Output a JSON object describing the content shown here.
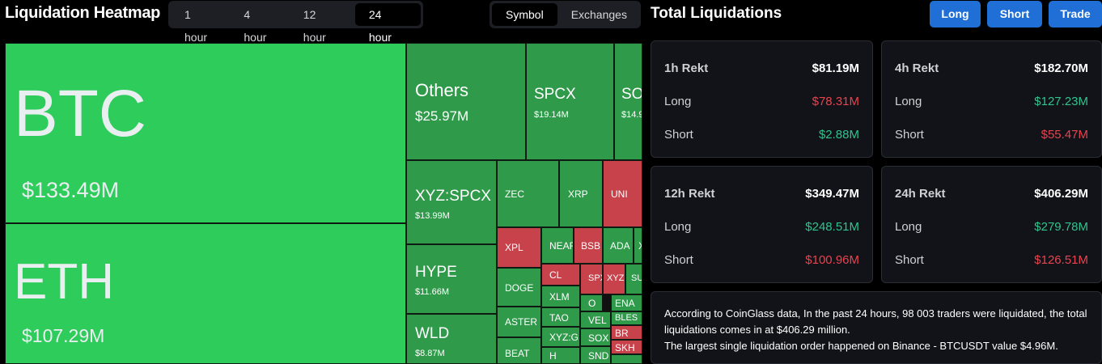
{
  "header": {
    "title": "Liquidation Heatmap",
    "time_options": [
      "1 hour",
      "4 hour",
      "12 hour",
      "24 hour"
    ],
    "time_selected": "24 hour",
    "group_options": [
      "Symbol",
      "Exchanges"
    ],
    "group_selected": "Symbol"
  },
  "colors": {
    "big_green": "#2ecc5a",
    "green": "#2f9a4a",
    "red": "#c7424b",
    "accent_blue": "#1f6fd6"
  },
  "heatmap": {
    "tiles": [
      {
        "name": "BTC",
        "value": "$133.49M",
        "color": "green"
      },
      {
        "name": "ETH",
        "value": "$107.29M",
        "color": "green"
      },
      {
        "name": "Others",
        "value": "$25.97M",
        "color": "green"
      },
      {
        "name": "SPCX",
        "value": "$19.14M",
        "color": "green"
      },
      {
        "name": "SO",
        "value": "$14.9",
        "color": "green"
      },
      {
        "name": "XYZ:SPCX",
        "value": "$13.99M",
        "color": "green"
      },
      {
        "name": "HYPE",
        "value": "$11.66M",
        "color": "green"
      },
      {
        "name": "WLD",
        "value": "$8.87M",
        "color": "green"
      },
      {
        "name": "ZEC",
        "value": "",
        "color": "green"
      },
      {
        "name": "XRP",
        "value": "",
        "color": "green"
      },
      {
        "name": "UNI",
        "value": "",
        "color": "red"
      },
      {
        "name": "XPL",
        "value": "",
        "color": "red"
      },
      {
        "name": "NEAR",
        "value": "",
        "color": "green"
      },
      {
        "name": "BSB",
        "value": "",
        "color": "red"
      },
      {
        "name": "ADA",
        "value": "",
        "color": "green"
      },
      {
        "name": "X",
        "value": "",
        "color": "green"
      },
      {
        "name": "DOGE",
        "value": "",
        "color": "green"
      },
      {
        "name": "CL",
        "value": "",
        "color": "red"
      },
      {
        "name": "SPX",
        "value": "",
        "color": "red"
      },
      {
        "name": "XYZ",
        "value": "",
        "color": "red"
      },
      {
        "name": "SU",
        "value": "",
        "color": "green"
      },
      {
        "name": "XLM",
        "value": "",
        "color": "green"
      },
      {
        "name": "ASTER",
        "value": "",
        "color": "green"
      },
      {
        "name": "O",
        "value": "",
        "color": "green"
      },
      {
        "name": "ENA",
        "value": "",
        "color": "green"
      },
      {
        "name": "TAO",
        "value": "",
        "color": "green"
      },
      {
        "name": "VEL",
        "value": "",
        "color": "green"
      },
      {
        "name": "BLES",
        "value": "",
        "color": "green"
      },
      {
        "name": "XYZ:G",
        "value": "",
        "color": "green"
      },
      {
        "name": "SOX",
        "value": "",
        "color": "green"
      },
      {
        "name": "BR",
        "value": "",
        "color": "red"
      },
      {
        "name": "BEAT",
        "value": "",
        "color": "green"
      },
      {
        "name": "H",
        "value": "",
        "color": "green"
      },
      {
        "name": "SND",
        "value": "",
        "color": "green"
      },
      {
        "name": "SKH",
        "value": "",
        "color": "red"
      }
    ]
  },
  "right": {
    "title": "Total Liquidations",
    "buttons": [
      "Long",
      "Short",
      "Trade"
    ],
    "cards": [
      {
        "title": "1h Rekt",
        "total": "$81.19M",
        "total_color": "red",
        "long": "$78.31M",
        "long_color": "red",
        "short": "$2.88M",
        "short_color": "green"
      },
      {
        "title": "4h Rekt",
        "total": "$182.70M",
        "total_color": "white",
        "long": "$127.23M",
        "long_color": "green",
        "short": "$55.47M",
        "short_color": "red"
      },
      {
        "title": "12h Rekt",
        "total": "$349.47M",
        "total_color": "white",
        "long": "$248.51M",
        "long_color": "green",
        "short": "$100.96M",
        "short_color": "red"
      },
      {
        "title": "24h Rekt",
        "total": "$406.29M",
        "total_color": "white",
        "long": "$279.78M",
        "long_color": "green",
        "short": "$126.51M",
        "short_color": "red"
      }
    ],
    "long_label": "Long",
    "short_label": "Short",
    "note_line1": "According to CoinGlass data, In the past 24 hours, 98 003 traders were liquidated, the total liquidations comes in at $406.29 million.",
    "note_line2": "The largest single liquidation order happened on Binance - BTCUSDT value $4.96M."
  }
}
